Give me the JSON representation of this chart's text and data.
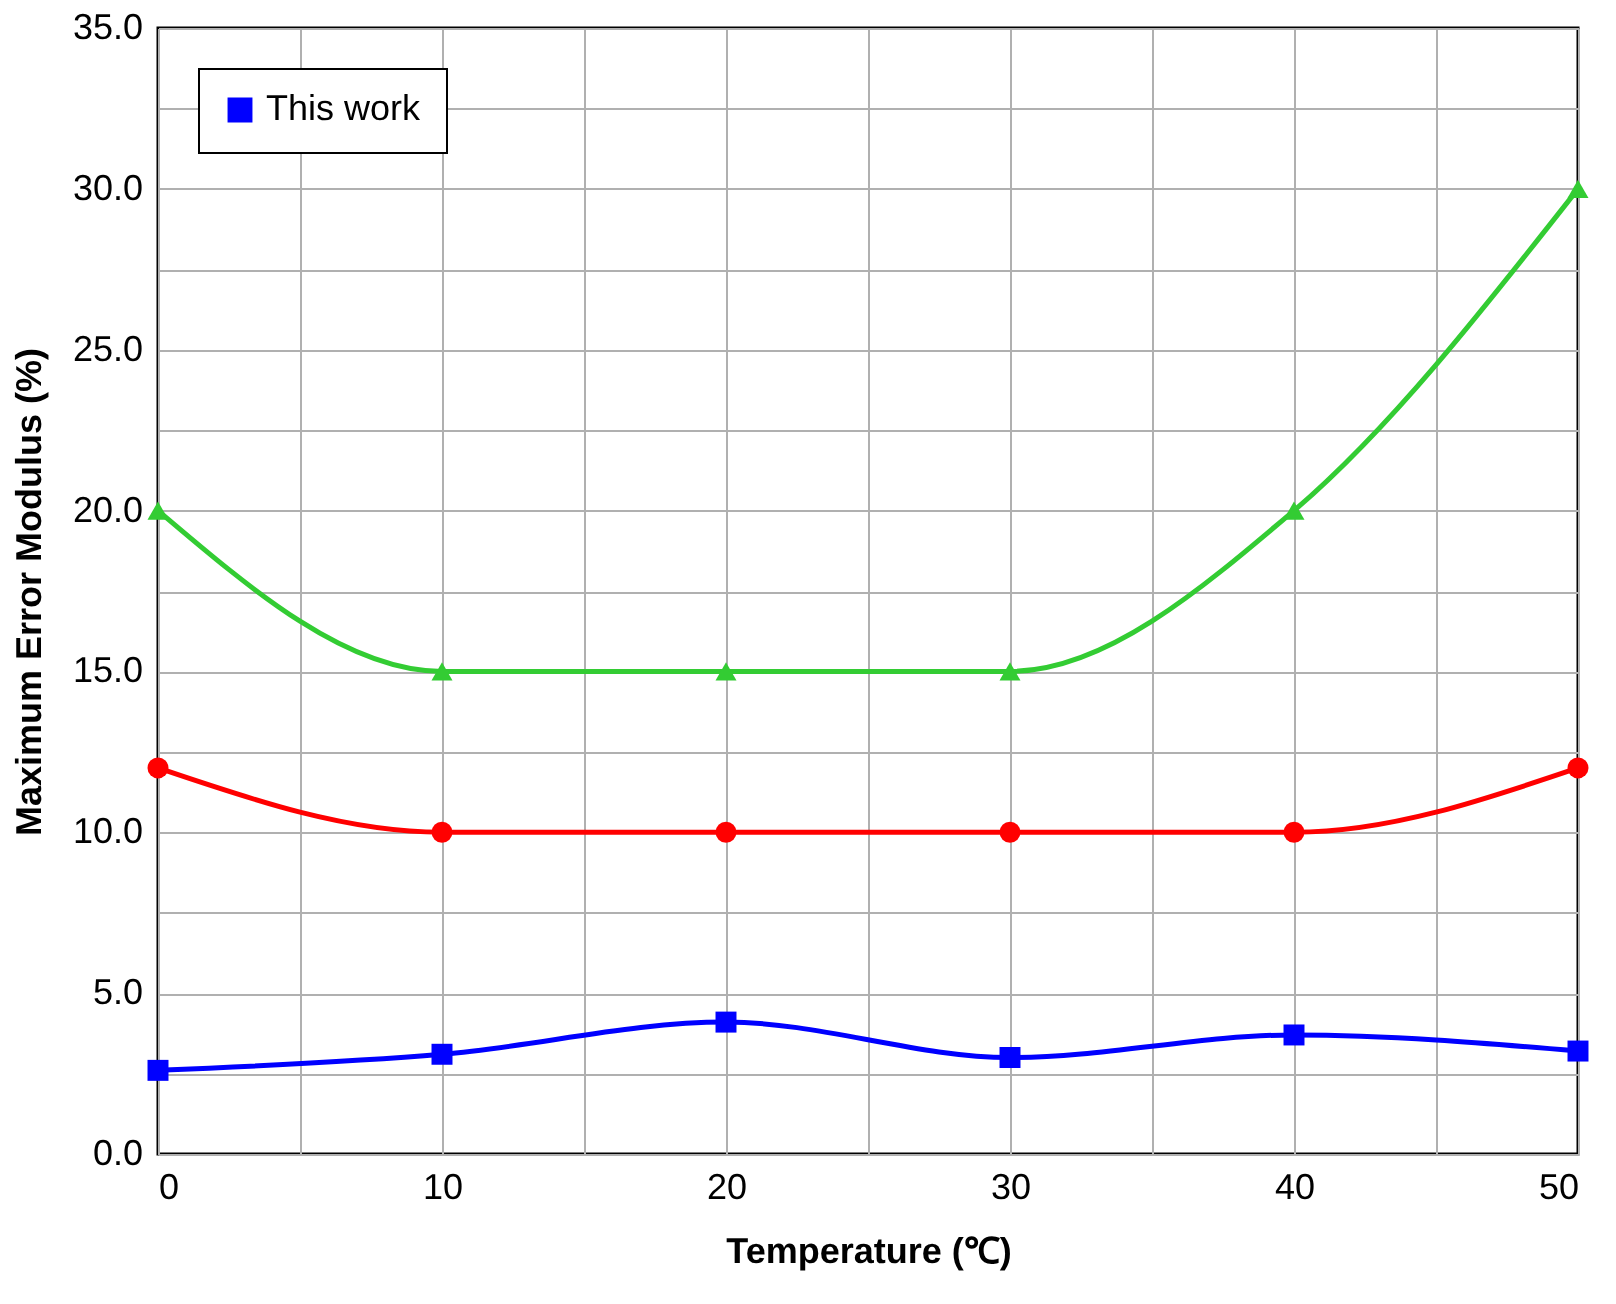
{
  "chart_data": {
    "type": "line",
    "xlabel": "Temperature (℃)",
    "ylabel": "Maximum Error Modulus (%)",
    "x": [
      0,
      10,
      20,
      30,
      40,
      50
    ],
    "series": [
      {
        "color": "#33cc33",
        "marker": "triangle",
        "values": [
          20,
          15,
          15,
          15,
          20,
          30
        ]
      },
      {
        "color": "#ff0000",
        "marker": "circle",
        "values": [
          12,
          10,
          10,
          10,
          10,
          12
        ]
      },
      {
        "name": "This work",
        "color": "#0000ff",
        "marker": "square",
        "values": [
          2.6,
          3.1,
          4.1,
          3.0,
          3.7,
          3.2
        ]
      }
    ],
    "xlim": [
      0,
      50
    ],
    "ylim": [
      0,
      35
    ],
    "xticks": [
      0,
      {
        "value": 5,
        "label": null
      },
      10,
      {
        "value": 15,
        "label": null
      },
      20,
      {
        "value": 25,
        "label": null
      },
      30,
      {
        "value": 35,
        "label": null
      },
      40,
      {
        "value": 45,
        "label": null
      },
      50
    ],
    "yticks": [
      {
        "value": 0,
        "label": "0.0"
      },
      {
        "value": 2.5,
        "label": null
      },
      {
        "value": 5,
        "label": "5.0"
      },
      {
        "value": 7.5,
        "label": null
      },
      {
        "value": 10,
        "label": "10.0"
      },
      {
        "value": 12.5,
        "label": null
      },
      {
        "value": 15,
        "label": "15.0"
      },
      {
        "value": 17.5,
        "label": null
      },
      {
        "value": 20,
        "label": "20.0"
      },
      {
        "value": 22.5,
        "label": null
      },
      {
        "value": 25,
        "label": "25.0"
      },
      {
        "value": 27.5,
        "label": null
      },
      {
        "value": 30,
        "label": "30.0"
      },
      {
        "value": 32.5,
        "label": null
      },
      {
        "value": 35,
        "label": "35.0"
      }
    ],
    "grid": true,
    "legend": "top left",
    "line_style": "solid"
  }
}
